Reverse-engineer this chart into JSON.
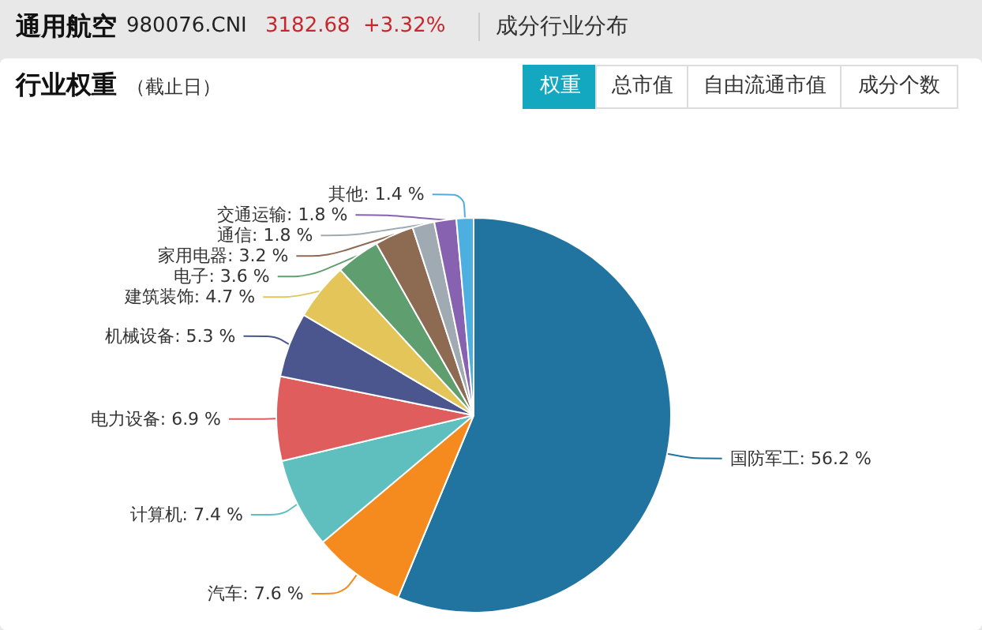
{
  "chart_data": {
    "type": "pie",
    "title": "通用航空",
    "subtitle": "行业权重",
    "annotations": [
      "980076.CNI",
      "3182.68",
      "+3.32%",
      "成分行业分布",
      "（截止日）",
      "权重",
      "总市值",
      "自由流通市值",
      "成分个数"
    ],
    "categories": [
      "国防军工",
      "汽车",
      "计算机",
      "电力设备",
      "机械设备",
      "建筑装饰",
      "电子",
      "家用电器",
      "通信",
      "交通运输",
      "其他"
    ],
    "values": [
      56.2,
      7.6,
      7.4,
      6.9,
      5.3,
      4.7,
      3.6,
      3.2,
      1.8,
      1.8,
      1.4
    ],
    "value_labels": [
      "56.2 %",
      "7.6 %",
      "7.4 %",
      "6.9 %",
      "5.3 %",
      "4.7 %",
      "3.6 %",
      "3.2 %",
      "1.8 %",
      "1.8 %",
      "1.4 %"
    ],
    "colors": [
      "#2274a0",
      "#f58a1f",
      "#5fbfbf",
      "#e05d5d",
      "#4a568d",
      "#e4c55a",
      "#5f9e6e",
      "#8d6b53",
      "#a0aab2",
      "#8662b0",
      "#4dafe0"
    ],
    "legend": false
  }
}
